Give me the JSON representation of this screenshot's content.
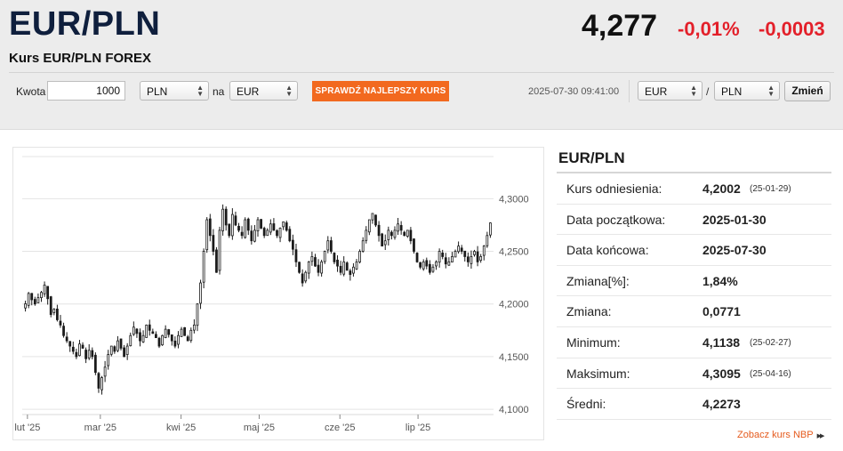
{
  "header": {
    "pair_title": "EUR/PLN",
    "subtitle": "Kurs EUR/PLN FOREX",
    "price": "4,277",
    "change_percent": "-0,01%",
    "change_absolute": "-0,0003",
    "change_color": "#e3202a"
  },
  "converter": {
    "amount_label": "Kwota",
    "amount_value": "1000",
    "from_currency": "PLN",
    "to_label": "na",
    "to_currency": "EUR",
    "best_rate_button": "SPRAWDŹ NAJLEPSZY KURS",
    "best_rate_button_color": "#f2691f",
    "timestamp": "2025-07-30 09:41:00",
    "pair_base": "EUR",
    "pair_separator": "/",
    "pair_quote": "PLN",
    "change_button": "Zmień"
  },
  "stats": {
    "title": "EUR/PLN",
    "rows": [
      {
        "label": "Kurs odniesienia:",
        "value": "4,2002",
        "date": "(25-01-29)"
      },
      {
        "label": "Data początkowa:",
        "value": "2025-01-30",
        "date": ""
      },
      {
        "label": "Data końcowa:",
        "value": "2025-07-30",
        "date": ""
      },
      {
        "label": "Zmiana[%]:",
        "value": "1,84%",
        "date": ""
      },
      {
        "label": "Zmiana:",
        "value": "0,0771",
        "date": ""
      },
      {
        "label": "Minimum:",
        "value": "4,1138",
        "date": "(25-02-27)"
      },
      {
        "label": "Maksimum:",
        "value": "4,3095",
        "date": "(25-04-16)"
      },
      {
        "label": "Średni:",
        "value": "4,2273",
        "date": ""
      }
    ],
    "nbp_link": "Zobacz kurs NBP"
  },
  "chart_data": {
    "type": "candlestick",
    "y_ticks": [
      "4,3000",
      "4,2500",
      "4,2000",
      "4,1500",
      "4,1000"
    ],
    "y_tick_values": [
      4.3,
      4.25,
      4.2,
      4.15,
      4.1
    ],
    "ylim": [
      4.095,
      4.34
    ],
    "x_ticks": [
      "lut '25",
      "mar '25",
      "kwi '25",
      "maj '25",
      "cze '25",
      "lip '25"
    ],
    "x_tick_dates": [
      "2025-02-01",
      "2025-03-01",
      "2025-04-01",
      "2025-05-01",
      "2025-06-01",
      "2025-07-01"
    ],
    "date_range": [
      "2025-01-30",
      "2025-07-30"
    ],
    "grid": true,
    "candle_color": "#1a1a1a",
    "closes": [
      4.2002,
      4.21,
      4.204,
      4.2,
      4.206,
      4.211,
      4.218,
      4.205,
      4.19,
      4.195,
      4.185,
      4.18,
      4.17,
      4.165,
      4.16,
      4.155,
      4.15,
      4.162,
      4.158,
      4.148,
      4.156,
      4.15,
      4.135,
      4.12,
      4.13,
      4.14,
      4.152,
      4.16,
      4.155,
      4.165,
      4.158,
      4.15,
      4.16,
      4.17,
      4.178,
      4.172,
      4.165,
      4.17,
      4.18,
      4.175,
      4.172,
      4.168,
      4.16,
      4.17,
      4.176,
      4.171,
      4.165,
      4.16,
      4.17,
      4.176,
      4.17,
      4.165,
      4.175,
      4.18,
      4.2,
      4.22,
      4.25,
      4.28,
      4.265,
      4.25,
      4.23,
      4.27,
      4.29,
      4.275,
      4.265,
      4.285,
      4.275,
      4.27,
      4.265,
      4.28,
      4.27,
      4.26,
      4.27,
      4.28,
      4.272,
      4.265,
      4.27,
      4.276,
      4.27,
      4.265,
      4.272,
      4.278,
      4.27,
      4.26,
      4.252,
      4.24,
      4.23,
      4.22,
      4.23,
      4.24,
      4.245,
      4.236,
      4.23,
      4.24,
      4.25,
      4.26,
      4.25,
      4.24,
      4.236,
      4.23,
      4.24,
      4.232,
      4.228,
      4.235,
      4.24,
      4.25,
      4.26,
      4.27,
      4.28,
      4.286,
      4.275,
      4.265,
      4.255,
      4.26,
      4.27,
      4.265,
      4.27,
      4.276,
      4.27,
      4.265,
      4.27,
      4.26,
      4.25,
      4.24,
      4.235,
      4.24,
      4.236,
      4.23,
      4.235,
      4.24,
      4.25,
      4.245,
      4.238,
      4.24,
      4.245,
      4.25,
      4.255,
      4.25,
      4.245,
      4.24,
      4.245,
      4.25,
      4.24,
      4.245,
      4.255,
      4.265,
      4.277
    ]
  }
}
